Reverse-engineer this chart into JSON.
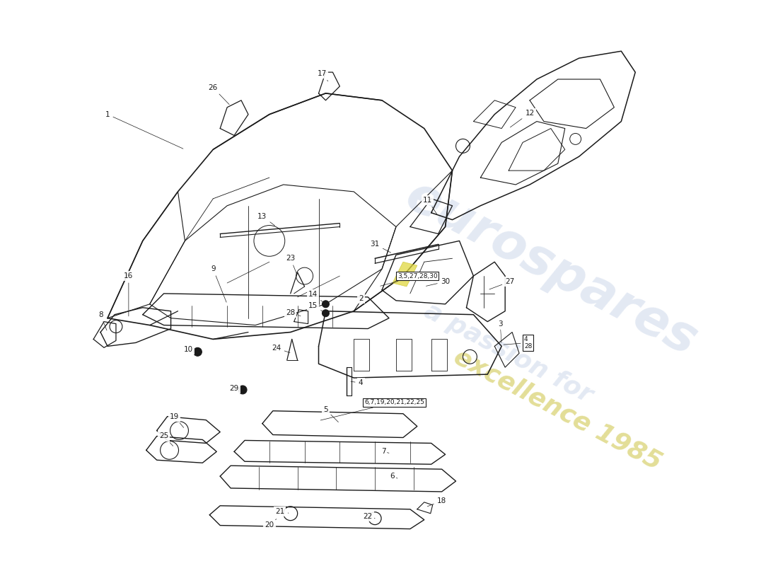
{
  "background_color": "#ffffff",
  "line_color": "#1a1a1a",
  "fig_width": 11.0,
  "fig_height": 8.0,
  "watermark1": "eurospares",
  "watermark2": "a passion for",
  "watermark3": "excellence 1985",
  "wm_color": "#c8d4e8",
  "wm_year_color": "#d4cc60"
}
